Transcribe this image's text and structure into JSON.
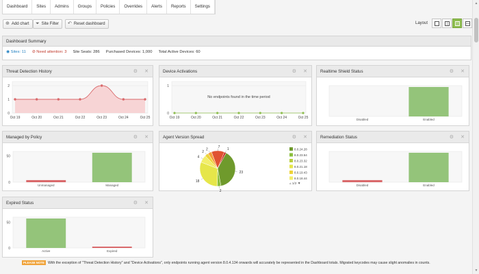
{
  "nav": {
    "tabs": [
      "Dashboard",
      "Sites",
      "Admins",
      "Groups",
      "Policies",
      "Overrides",
      "Alerts",
      "Reports",
      "Settings"
    ]
  },
  "toolbar": {
    "add_chart": "Add chart",
    "site_filter": "Site Filter",
    "reset_dashboard": "Reset dashboard",
    "layout_label": "Layout"
  },
  "summary": {
    "title": "Dashboard Summary",
    "sites": "Sites: 11",
    "need_attention": "Need attention: 3",
    "site_seats": "Site Seats: 286",
    "purchased": "Purchased Devices: 1,000",
    "total_active": "Total Active Devices: 60"
  },
  "panels": {
    "threat": "Threat Detection History",
    "activations": "Device Activations",
    "realtime": "Realtime Shield Status",
    "managed": "Managed by Policy",
    "agent": "Agent Version Spread",
    "remediation": "Remediation Status",
    "expired": "Expired Status"
  },
  "colors": {
    "accent": "#8dbd4e",
    "bar_green": "#94c47a",
    "bar_red": "#d9696b",
    "line_red": "#d9696b",
    "area_pink": "#f7d4d5",
    "attention": "#c0392b",
    "link": "#1f7fc0",
    "note_badge": "#f0a33a"
  },
  "icons": {
    "add_chart": "plus-circle-icon",
    "site_filter": "funnel-icon",
    "reset": "undo-arrow-icon",
    "panel_settings": "gear-icon",
    "panel_close": "close-icon"
  },
  "footer": {
    "badge": "PLEASE NOTE",
    "text": "With the exception of \"Threat Detection History\" and \"Device Activations\", only endpoints running agent version 8.0.4.134 onwards will accurately be represented in the Dashboard totals. Migrated keycodes may cause slight anomalies in counts."
  },
  "chart_data": [
    {
      "id": "threat",
      "type": "area",
      "categories": [
        "Oct 19",
        "Oct 20",
        "Oct 21",
        "Oct 22",
        "Oct 23",
        "Oct 24",
        "Oct 25"
      ],
      "values": [
        1,
        1,
        1,
        1,
        2,
        1,
        1
      ],
      "yticks": [
        "0",
        "1",
        "2"
      ],
      "ylim": [
        0,
        2
      ]
    },
    {
      "id": "activations",
      "type": "line",
      "categories": [
        "Oct 19",
        "Oct 20",
        "Oct 21",
        "Oct 22",
        "Oct 23",
        "Oct 24",
        "Oct 25"
      ],
      "values": [
        0,
        0,
        0,
        0,
        0,
        0,
        0
      ],
      "yticks": [
        "0",
        "1"
      ],
      "ylim": [
        0,
        1
      ],
      "message": "No endpoints found in the time period"
    },
    {
      "id": "realtime",
      "type": "bar",
      "categories": [
        "Disabled",
        "Enabled"
      ],
      "values": [
        0,
        60
      ],
      "ylim": [
        0,
        60
      ]
    },
    {
      "id": "managed",
      "type": "bar",
      "categories": [
        "Unmanaged",
        "Managed"
      ],
      "values": [
        4,
        56
      ],
      "yticks": [
        "0",
        "50"
      ],
      "ylim": [
        0,
        56
      ]
    },
    {
      "id": "agent",
      "type": "pie",
      "labels": [
        "23",
        "2",
        "18",
        "4",
        "2",
        "2",
        "7",
        "1"
      ],
      "values": [
        23,
        2,
        18,
        4,
        2,
        2,
        7,
        1
      ],
      "colors": [
        "#6f9a2c",
        "#8bbf3c",
        "#e6e64a",
        "#f2ee6a",
        "#eed337",
        "#f4a03a",
        "#e05232",
        "#c7291e"
      ],
      "legend": [
        "8.0.24.28",
        "8.0.23.54",
        "8.0.23.32",
        "8.0.21.18",
        "8.0.19.43",
        "8.0.18.44"
      ],
      "legend_colors": [
        "#6f9a2c",
        "#8bbf3c",
        "#b9cf3e",
        "#e6e64a",
        "#eed337",
        "#f2ee6a"
      ],
      "legend_page": "1/2"
    },
    {
      "id": "remediation",
      "type": "bar",
      "categories": [
        "Disabled",
        "Enabled"
      ],
      "values": [
        4,
        56
      ],
      "ylim": [
        0,
        56
      ]
    },
    {
      "id": "expired",
      "type": "bar",
      "categories": [
        "Active",
        "Expired"
      ],
      "values": [
        57,
        1
      ],
      "yticks": [
        "0",
        "50"
      ],
      "ylim": [
        0,
        57
      ]
    }
  ]
}
